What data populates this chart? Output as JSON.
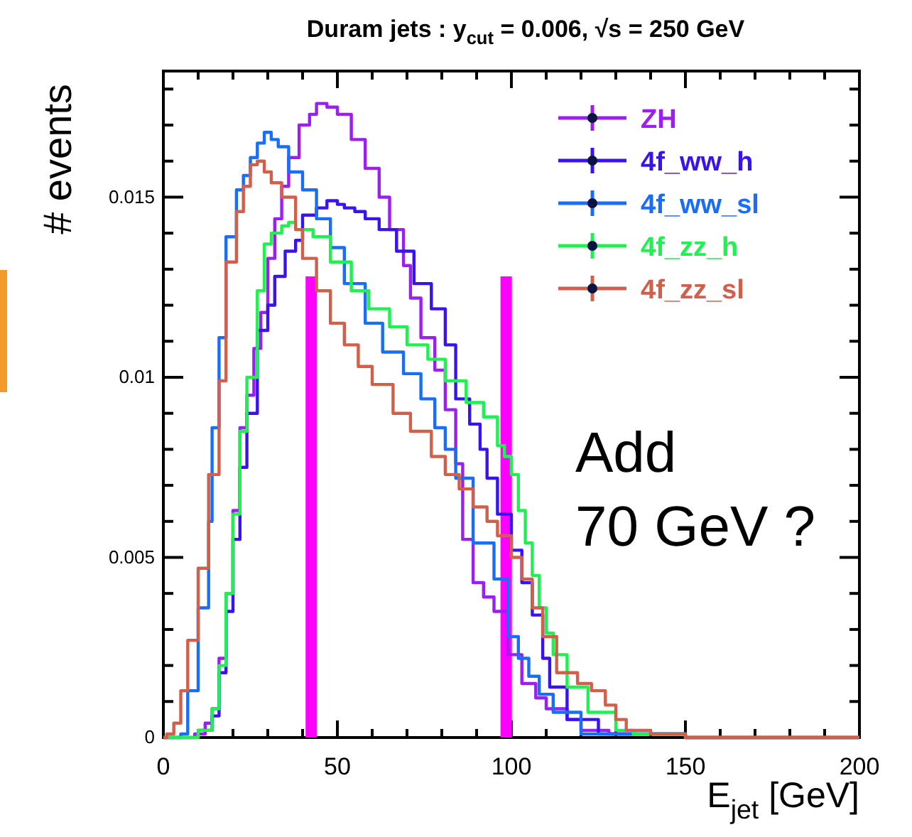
{
  "chart_data": {
    "type": "step",
    "title": "Duram jets : y$_{cut}$ = 0.006,   √s = 250 GeV",
    "xlabel": "E$_{jet}$ [GeV]",
    "ylabel": "# events",
    "xlim": [
      0,
      200
    ],
    "ylim": [
      0,
      0.0185
    ],
    "xticks": [
      0,
      50,
      100,
      150,
      200
    ],
    "yticks": [
      0,
      0.005,
      0.01,
      0.015
    ],
    "legend": "top right",
    "annotations": [
      "Add\n70 GeV ?"
    ],
    "series": [
      {
        "name": "ZH",
        "color": "#9b1ff0",
        "x": [
          0,
          5,
          9,
          12,
          14,
          16,
          18,
          20,
          22,
          24,
          26,
          28,
          30,
          32,
          34,
          36,
          39,
          42,
          44,
          47,
          50,
          54,
          58,
          62,
          65,
          69,
          71,
          74,
          78,
          81,
          84,
          86,
          89,
          92,
          95,
          99,
          103,
          107,
          110,
          116,
          120,
          128,
          135
        ],
        "values": [
          0,
          0,
          0.0001,
          0.0004,
          0.0008,
          0.0022,
          0.004,
          0.0063,
          0.0086,
          0.0095,
          0.0108,
          0.0118,
          0.0133,
          0.0144,
          0.0153,
          0.0161,
          0.017,
          0.0173,
          0.0176,
          0.0175,
          0.0173,
          0.0166,
          0.0158,
          0.015,
          0.0141,
          0.0131,
          0.0122,
          0.0111,
          0.0102,
          0.0091,
          0.0076,
          0.0055,
          0.0043,
          0.0039,
          0.0035,
          0.0023,
          0.0015,
          0.0011,
          0.0008,
          0.0005,
          0.0002,
          0.0001,
          0.0001
        ]
      },
      {
        "name": "4f_ww_h",
        "color": "#3a12f0",
        "x": [
          10,
          14,
          16,
          18,
          20,
          22,
          24,
          27,
          30,
          32,
          35,
          38,
          40,
          44,
          47,
          50,
          52,
          55,
          58,
          62,
          67,
          72,
          77,
          81,
          84,
          88,
          91,
          93,
          96,
          100,
          103,
          106,
          109,
          111,
          116,
          125,
          150,
          200
        ],
        "values": [
          0.0002,
          0.0006,
          0.0018,
          0.0035,
          0.0055,
          0.0075,
          0.009,
          0.0113,
          0.012,
          0.0128,
          0.0135,
          0.0138,
          0.0145,
          0.0147,
          0.0149,
          0.0148,
          0.0147,
          0.0146,
          0.0144,
          0.0141,
          0.0135,
          0.0126,
          0.0119,
          0.0109,
          0.0094,
          0.0087,
          0.008,
          0.0072,
          0.0062,
          0.0052,
          0.0043,
          0.0034,
          0.0022,
          0.0014,
          0.0005,
          0.0001,
          0,
          0
        ]
      },
      {
        "name": "4f_ww_sl",
        "color": "#1a6ef5",
        "x": [
          0,
          3,
          5,
          7,
          10,
          13,
          14,
          16,
          18,
          21,
          23,
          25,
          27,
          29,
          31,
          33,
          36,
          40,
          44,
          48,
          52,
          58,
          63,
          69,
          74,
          78,
          81,
          84,
          89,
          95,
          99,
          102,
          105,
          108,
          112,
          120,
          150,
          200
        ],
        "values": [
          0,
          0,
          0.0001,
          0.0013,
          0.0036,
          0.006,
          0.0086,
          0.0111,
          0.0139,
          0.0152,
          0.0156,
          0.0161,
          0.0165,
          0.0168,
          0.0166,
          0.0164,
          0.0157,
          0.0152,
          0.0144,
          0.0136,
          0.0126,
          0.0115,
          0.0107,
          0.0101,
          0.0094,
          0.0086,
          0.008,
          0.0072,
          0.0054,
          0.0044,
          0.0028,
          0.0022,
          0.0017,
          0.0012,
          0.0007,
          0.0001,
          0,
          0
        ]
      },
      {
        "name": "4f_zz_h",
        "color": "#20f050",
        "x": [
          0,
          6,
          10,
          14,
          16,
          18,
          20,
          22,
          24,
          27,
          29,
          31,
          34,
          36,
          38,
          43,
          48,
          54,
          59,
          65,
          70,
          76,
          81,
          87,
          92,
          96,
          98,
          100,
          102,
          104,
          106,
          108,
          110,
          112,
          116,
          122,
          130,
          135,
          150,
          200
        ],
        "values": [
          0,
          0,
          0.0002,
          0.0008,
          0.002,
          0.004,
          0.0062,
          0.0085,
          0.01,
          0.0124,
          0.0137,
          0.014,
          0.0142,
          0.0143,
          0.0141,
          0.0139,
          0.0132,
          0.0124,
          0.0119,
          0.0114,
          0.0109,
          0.0105,
          0.0099,
          0.0093,
          0.0089,
          0.0081,
          0.0078,
          0.0073,
          0.0063,
          0.0054,
          0.0045,
          0.0036,
          0.0029,
          0.0023,
          0.0014,
          0.0007,
          0.0002,
          0.0001,
          0,
          0
        ]
      },
      {
        "name": "4f_zz_sl",
        "color": "#d0604c",
        "x": [
          0,
          1,
          3,
          5,
          7,
          10,
          13,
          16,
          18,
          21,
          23,
          25,
          27,
          29,
          31,
          34,
          38,
          40,
          44,
          48,
          52,
          56,
          60,
          66,
          71,
          77,
          81,
          85,
          89,
          93,
          96,
          100,
          103,
          106,
          109,
          113,
          119,
          123,
          127,
          130,
          133,
          140,
          150,
          200
        ],
        "values": [
          0,
          0.0001,
          0.0004,
          0.0013,
          0.0027,
          0.0047,
          0.0073,
          0.0099,
          0.0132,
          0.0146,
          0.0153,
          0.0159,
          0.016,
          0.0157,
          0.0154,
          0.015,
          0.0141,
          0.0133,
          0.0124,
          0.0115,
          0.0109,
          0.0103,
          0.0098,
          0.009,
          0.0085,
          0.0078,
          0.0073,
          0.0069,
          0.0064,
          0.006,
          0.0056,
          0.005,
          0.0044,
          0.0036,
          0.0028,
          0.0018,
          0.0015,
          0.0013,
          0.0009,
          0.0005,
          0.0002,
          0.0001,
          0,
          0
        ]
      },
      {
        "type": "bar",
        "color": "#ff00ff",
        "x": [
          42.5,
          98.5
        ],
        "values": [
          0.0128,
          0.0128
        ]
      }
    ]
  }
}
